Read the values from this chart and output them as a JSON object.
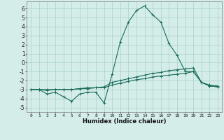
{
  "x": [
    0,
    1,
    2,
    3,
    4,
    5,
    6,
    7,
    8,
    9,
    10,
    11,
    12,
    13,
    14,
    15,
    16,
    17,
    18,
    19,
    20,
    21,
    22,
    23
  ],
  "line1": [
    -3.0,
    -3.0,
    -3.5,
    -3.3,
    -3.8,
    -4.3,
    -3.5,
    -3.3,
    -3.3,
    -4.5,
    -1.3,
    2.3,
    4.5,
    5.8,
    6.3,
    5.3,
    4.5,
    2.1,
    0.8,
    -1.0,
    -1.0,
    -2.2,
    -2.6,
    -2.7
  ],
  "line2": [
    -3.0,
    -3.0,
    -3.1,
    -3.0,
    -3.0,
    -3.0,
    -2.9,
    -2.9,
    -2.8,
    -2.8,
    -2.5,
    -2.3,
    -2.1,
    -1.9,
    -1.8,
    -1.6,
    -1.5,
    -1.4,
    -1.3,
    -1.2,
    -1.0,
    -2.2,
    -2.6,
    -2.7
  ],
  "line3": [
    -3.0,
    -3.0,
    -3.0,
    -3.0,
    -3.0,
    -3.0,
    -2.9,
    -2.8,
    -2.8,
    -2.7,
    -2.2,
    -2.0,
    -1.8,
    -1.6,
    -1.4,
    -1.2,
    -1.1,
    -0.9,
    -0.8,
    -0.7,
    -0.6,
    -2.2,
    -2.5,
    -2.6
  ],
  "bg_color": "#d4ede9",
  "grid_color": "#b0d4cf",
  "line_color": "#1a6b5a",
  "xlabel": "Humidex (Indice chaleur)",
  "ylim": [
    -5.5,
    6.8
  ],
  "xlim": [
    -0.5,
    23.5
  ],
  "yticks": [
    -5,
    -4,
    -3,
    -2,
    -1,
    0,
    1,
    2,
    3,
    4,
    5,
    6
  ],
  "xticks": [
    0,
    1,
    2,
    3,
    4,
    5,
    6,
    7,
    8,
    9,
    10,
    11,
    12,
    13,
    14,
    15,
    16,
    17,
    18,
    19,
    20,
    21,
    22,
    23
  ]
}
